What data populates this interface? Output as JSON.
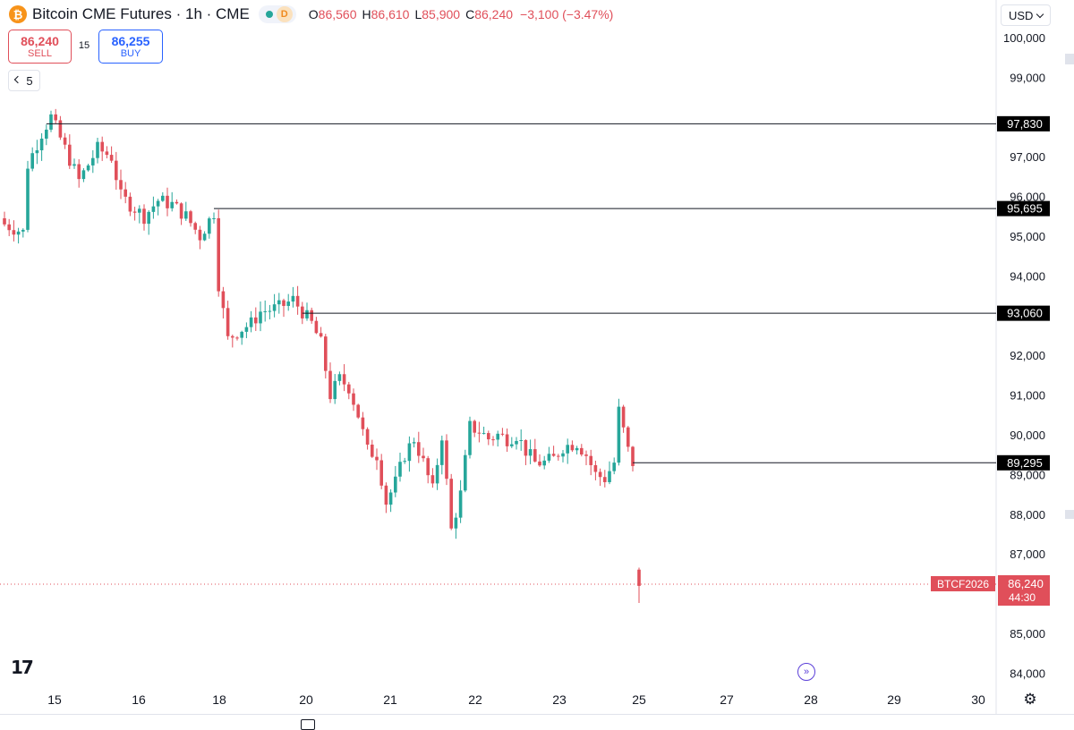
{
  "header": {
    "symbol_title": "Bitcoin CME Futures · 1h · CME",
    "coin_icon": "bitcoin-icon",
    "status_letter": "D",
    "ohlc": {
      "o_label": "O",
      "o_value": "86,560",
      "h_label": "H",
      "h_value": "86,610",
      "l_label": "L",
      "l_value": "85,900",
      "c_label": "C",
      "c_value": "86,240",
      "change": "−3,100 (−3.47%)"
    }
  },
  "trade": {
    "sell_price": "86,240",
    "sell_label": "SELL",
    "spread": "15",
    "buy_price": "86,255",
    "buy_label": "BUY"
  },
  "indicator_toggle": {
    "count": "5"
  },
  "currency": {
    "selected": "USD"
  },
  "colors": {
    "up": "#26a69a",
    "down": "#e04f5a",
    "line": "#131722",
    "accent": "#2962ff"
  },
  "chart_data": {
    "type": "candlestick",
    "ylim": [
      83700,
      100400
    ],
    "y_ticks": [
      "100,000",
      "99,000",
      "97,000",
      "96,000",
      "95,000",
      "94,000",
      "92,000",
      "91,000",
      "90,000",
      "89,000",
      "88,000",
      "87,000",
      "85,000",
      "84,000"
    ],
    "x_ticks": [
      "15",
      "16",
      "18",
      "20",
      "21",
      "22",
      "23",
      "25",
      "27",
      "28",
      "29",
      "30"
    ],
    "levels": [
      {
        "price": 97830,
        "label": "97,830",
        "from_bar": 9
      },
      {
        "price": 95695,
        "label": "95,695",
        "from_bar": 45
      },
      {
        "price": 93060,
        "label": "93,060",
        "from_bar": 64
      },
      {
        "price": 89295,
        "label": "89,295",
        "from_bar": 135
      }
    ],
    "current_price": {
      "price": 86240,
      "label": "86,240",
      "countdown": "44:30",
      "symbol": "BTCF2026"
    },
    "path_nodes": [
      [
        0,
        95300
      ],
      [
        4,
        95100
      ],
      [
        5,
        96800
      ],
      [
        8,
        97600
      ],
      [
        10,
        98000
      ],
      [
        13,
        97200
      ],
      [
        16,
        96400
      ],
      [
        18,
        96800
      ],
      [
        20,
        97200
      ],
      [
        23,
        97000
      ],
      [
        25,
        96000
      ],
      [
        28,
        95700
      ],
      [
        30,
        95500
      ],
      [
        33,
        95900
      ],
      [
        36,
        95800
      ],
      [
        39,
        95500
      ],
      [
        42,
        95000
      ],
      [
        45,
        95600
      ],
      [
        46,
        93800
      ],
      [
        48,
        92400
      ],
      [
        50,
        92600
      ],
      [
        53,
        92800
      ],
      [
        55,
        93100
      ],
      [
        59,
        93200
      ],
      [
        62,
        93400
      ],
      [
        64,
        93100
      ],
      [
        66,
        92800
      ],
      [
        68,
        92300
      ],
      [
        70,
        91000
      ],
      [
        72,
        91400
      ],
      [
        74,
        91200
      ],
      [
        76,
        90500
      ],
      [
        78,
        89600
      ],
      [
        80,
        89500
      ],
      [
        82,
        88300
      ],
      [
        84,
        88800
      ],
      [
        86,
        89500
      ],
      [
        88,
        89900
      ],
      [
        90,
        89300
      ],
      [
        92,
        88600
      ],
      [
        94,
        90000
      ],
      [
        96,
        87600
      ],
      [
        98,
        88500
      ],
      [
        100,
        90200
      ],
      [
        102,
        90100
      ],
      [
        104,
        89900
      ],
      [
        106,
        90000
      ],
      [
        108,
        89900
      ],
      [
        110,
        90000
      ],
      [
        112,
        89600
      ],
      [
        114,
        89300
      ],
      [
        116,
        89300
      ],
      [
        118,
        89400
      ],
      [
        120,
        89700
      ],
      [
        123,
        89800
      ],
      [
        125,
        89500
      ],
      [
        127,
        89000
      ],
      [
        129,
        88900
      ],
      [
        131,
        89300
      ],
      [
        132,
        90600
      ],
      [
        134,
        89600
      ],
      [
        135,
        89295
      ]
    ],
    "last_candle": {
      "open": 86560,
      "high": 86610,
      "low": 85900,
      "close": 86240
    }
  }
}
